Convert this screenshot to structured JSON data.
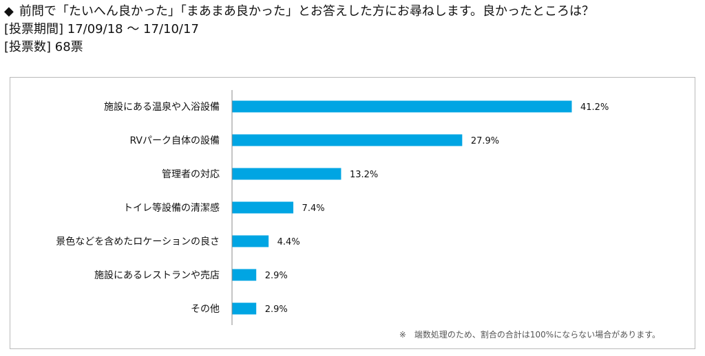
{
  "header": {
    "marker": "◆",
    "question": "前問で「たいへん良かった」「まあまあ良かった」とお答えした方にお尋ねします。良かったところは？",
    "period": "[投票期間] 17/09/18 〜 17/10/17",
    "votes": "[投票数] 68票"
  },
  "note": "※　端数処理のため、割合の合計は100%にならない場合があります。",
  "colors": {
    "bar": "#00a5e3",
    "axis": "#888888",
    "frame": "#b9b9b9"
  },
  "chart_data": {
    "type": "bar",
    "orientation": "horizontal",
    "categories": [
      "施設にある温泉や入浴設備",
      "RVパーク自体の設備",
      "管理者の対応",
      "トイレ等設備の清潔感",
      "景色などを含めたロケーションの良さ",
      "施設にあるレストランや売店",
      "その他"
    ],
    "values": [
      41.2,
      27.9,
      13.2,
      7.4,
      4.4,
      2.9,
      2.9
    ],
    "value_labels": [
      "41.2%",
      "27.9%",
      "13.2%",
      "7.4%",
      "4.4%",
      "2.9%",
      "2.9%"
    ],
    "xlim": [
      0,
      41.2
    ],
    "grid": false,
    "legend": "none"
  }
}
